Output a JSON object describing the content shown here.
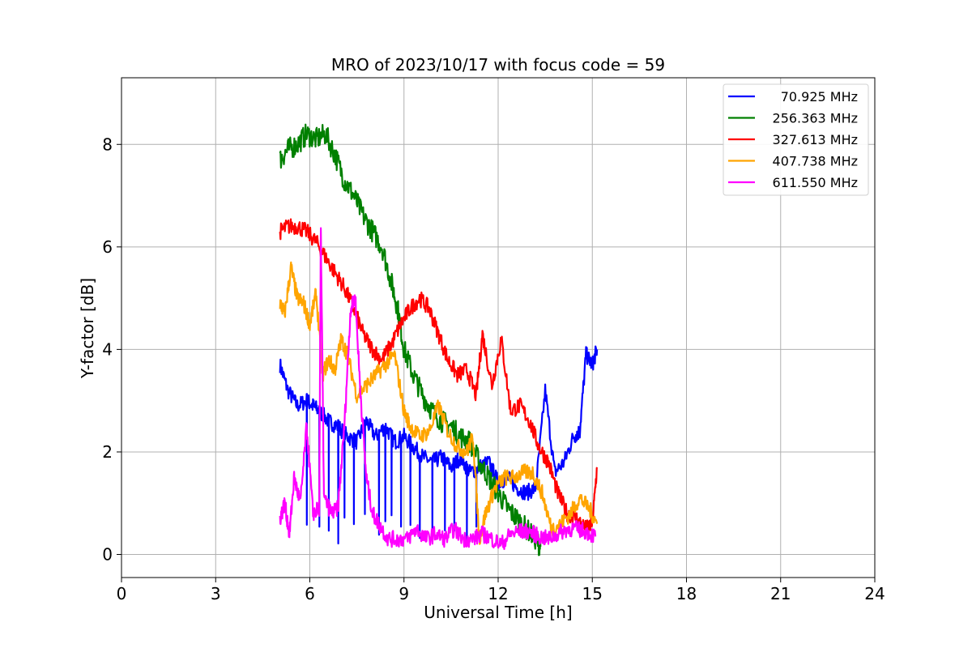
{
  "chart_data": {
    "type": "line",
    "title": "MRO of 2023/10/17 with focus code = 59",
    "xlabel": "Universal Time [h]",
    "ylabel": "Y-factor [dB]",
    "xlim": [
      0,
      24
    ],
    "ylim": [
      -0.45,
      9.3
    ],
    "xticks": [
      0,
      3,
      6,
      9,
      12,
      15,
      18,
      21,
      24
    ],
    "yticks": [
      0,
      2,
      4,
      6,
      8
    ],
    "grid": true,
    "legend_position": "top-right",
    "series": [
      {
        "name": "70.925 MHz",
        "color": "#0000ff",
        "x": [
          5.05,
          5.3,
          5.6,
          5.9,
          6.1,
          6.3,
          6.6,
          6.9,
          7.2,
          7.5,
          7.8,
          8.1,
          8.4,
          8.7,
          9.0,
          9.3,
          9.6,
          9.9,
          10.2,
          10.5,
          10.8,
          11.1,
          11.4,
          11.7,
          12.0,
          12.3,
          12.6,
          12.9,
          13.2,
          13.5,
          13.8,
          14.1,
          14.4,
          14.6,
          14.8,
          15.0,
          15.15
        ],
        "y": [
          3.7,
          3.2,
          2.9,
          3.0,
          2.9,
          2.8,
          2.6,
          2.5,
          2.3,
          2.2,
          2.6,
          2.3,
          2.5,
          2.2,
          2.3,
          2.1,
          1.9,
          1.8,
          1.9,
          1.7,
          1.9,
          1.6,
          1.7,
          1.8,
          1.4,
          1.5,
          1.3,
          1.2,
          1.3,
          3.2,
          1.6,
          1.8,
          2.3,
          2.4,
          3.9,
          3.7,
          4.0
        ],
        "dips_x": [
          5.9,
          6.3,
          6.6,
          6.9,
          7.1,
          7.4,
          7.75,
          8.2,
          8.4,
          8.6,
          8.9,
          9.2,
          9.5,
          9.9,
          10.3,
          10.6,
          11.0,
          11.3
        ]
      },
      {
        "name": "256.363 MHz",
        "color": "#008000",
        "x": [
          5.05,
          5.3,
          5.6,
          5.9,
          6.2,
          6.5,
          6.8,
          7.1,
          7.4,
          7.7,
          8.0,
          8.3,
          8.6,
          8.8,
          9.0,
          9.3,
          9.6,
          9.9,
          10.2,
          10.5,
          10.8,
          11.1,
          11.4,
          11.7,
          12.0,
          12.3,
          12.6,
          12.9,
          13.2,
          13.35
        ],
        "y": [
          7.7,
          7.9,
          8.0,
          8.2,
          8.1,
          8.2,
          7.8,
          7.3,
          7.0,
          6.6,
          6.3,
          6.0,
          5.3,
          4.8,
          4.0,
          3.5,
          3.1,
          2.8,
          2.6,
          2.5,
          2.3,
          2.2,
          1.8,
          1.5,
          1.2,
          0.9,
          0.7,
          0.5,
          0.3,
          0.15
        ]
      },
      {
        "name": "327.613 MHz",
        "color": "#ff0000",
        "x": [
          5.05,
          5.3,
          5.6,
          5.9,
          6.2,
          6.5,
          6.8,
          7.1,
          7.4,
          7.7,
          8.0,
          8.3,
          8.6,
          8.9,
          9.2,
          9.5,
          9.8,
          10.1,
          10.4,
          10.7,
          11.0,
          11.3,
          11.5,
          11.8,
          12.1,
          12.4,
          12.7,
          13.0,
          13.3,
          13.6,
          13.9,
          14.2,
          14.5,
          14.8,
          15.0,
          15.15
        ],
        "y": [
          6.3,
          6.4,
          6.4,
          6.3,
          6.1,
          5.8,
          5.5,
          5.2,
          4.8,
          4.3,
          4.0,
          3.8,
          4.1,
          4.5,
          4.8,
          5.0,
          4.8,
          4.3,
          3.8,
          3.5,
          3.6,
          3.1,
          4.3,
          3.3,
          4.2,
          2.8,
          2.9,
          2.6,
          2.1,
          1.8,
          1.2,
          0.8,
          0.7,
          0.5,
          0.6,
          1.7
        ]
      },
      {
        "name": "407.738 MHz",
        "color": "#ffa500",
        "x": [
          5.05,
          5.2,
          5.4,
          5.6,
          5.8,
          6.0,
          6.2,
          6.4,
          6.6,
          6.8,
          7.0,
          7.2,
          7.5,
          7.8,
          8.1,
          8.4,
          8.7,
          9.0,
          9.2,
          9.5,
          9.8,
          10.1,
          10.4,
          10.7,
          11.0,
          11.2,
          11.4,
          11.6,
          11.9,
          12.2,
          12.5,
          12.8,
          13.1,
          13.4,
          13.7,
          14.0,
          14.3,
          14.6,
          14.9,
          15.15
        ],
        "y": [
          4.9,
          4.7,
          5.6,
          5.0,
          4.9,
          4.5,
          5.1,
          3.5,
          3.8,
          3.6,
          4.2,
          3.9,
          3.1,
          3.3,
          3.5,
          3.7,
          3.9,
          2.8,
          2.5,
          2.3,
          2.4,
          2.9,
          2.4,
          2.1,
          2.0,
          2.3,
          0.3,
          0.8,
          1.3,
          1.5,
          1.5,
          1.6,
          1.6,
          1.2,
          0.5,
          0.6,
          0.8,
          1.1,
          0.9,
          0.6
        ]
      },
      {
        "name": "611.550 MHz",
        "color": "#ff00ff",
        "x": [
          5.05,
          5.2,
          5.35,
          5.5,
          5.7,
          5.9,
          6.1,
          6.3,
          6.35,
          6.45,
          6.7,
          6.9,
          7.1,
          7.3,
          7.45,
          7.6,
          7.8,
          8.0,
          8.2,
          8.5,
          8.8,
          9.1,
          9.4,
          9.7,
          10.0,
          10.3,
          10.6,
          10.9,
          11.2,
          11.5,
          11.8,
          12.1,
          12.4,
          12.7,
          13.0,
          13.3,
          13.6,
          13.9,
          14.2,
          14.5,
          14.8,
          15.1
        ],
        "y": [
          0.7,
          1.0,
          0.4,
          1.5,
          1.0,
          2.5,
          0.8,
          0.9,
          6.4,
          1.1,
          0.8,
          0.9,
          2.5,
          4.8,
          5.0,
          3.3,
          1.5,
          0.8,
          0.6,
          0.3,
          0.3,
          0.3,
          0.5,
          0.3,
          0.4,
          0.3,
          0.5,
          0.3,
          0.3,
          0.4,
          0.3,
          0.2,
          0.4,
          0.45,
          0.45,
          0.35,
          0.3,
          0.4,
          0.5,
          0.5,
          0.45,
          0.35
        ]
      }
    ]
  }
}
